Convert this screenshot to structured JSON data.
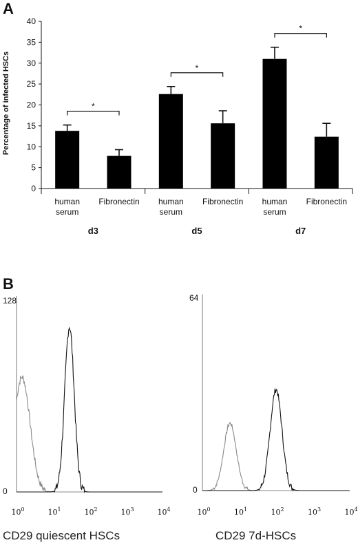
{
  "panels": {
    "a": "A",
    "b": "B"
  },
  "chart_data": [
    {
      "type": "bar",
      "ylabel": "Percentage of infected HSCs",
      "ylim": [
        0,
        40
      ],
      "yticks": [
        0,
        5,
        10,
        15,
        20,
        25,
        30,
        35,
        40
      ],
      "categories": [
        {
          "line1": "human",
          "line2": "serum"
        },
        {
          "line1": "Fibronectin",
          "line2": ""
        },
        {
          "line1": "human",
          "line2": "serum"
        },
        {
          "line1": "Fibronectin",
          "line2": ""
        },
        {
          "line1": "human",
          "line2": "serum"
        },
        {
          "line1": "Fibronectin",
          "line2": ""
        }
      ],
      "groups": [
        "d3",
        "d5",
        "d7"
      ],
      "values": [
        13.8,
        7.8,
        22.6,
        15.6,
        31.0,
        12.4
      ],
      "errors": [
        1.4,
        1.5,
        1.8,
        3.0,
        2.8,
        3.2
      ],
      "significance": [
        {
          "pair": [
            0,
            1
          ],
          "label": "*"
        },
        {
          "pair": [
            2,
            3
          ],
          "label": "*"
        },
        {
          "pair": [
            4,
            5
          ],
          "label": "*"
        }
      ],
      "bar_color": "#000000"
    },
    {
      "type": "histogram",
      "title": "CD29 quiescent HSCs",
      "ymax_label": "128",
      "ymin_label": "0",
      "ymax": 128,
      "x_log_ticks": [
        {
          "base": "10",
          "exp": "0"
        },
        {
          "base": "10",
          "exp": "1"
        },
        {
          "base": "10",
          "exp": "2"
        },
        {
          "base": "10",
          "exp": "3"
        },
        {
          "base": "10",
          "exp": "4"
        }
      ],
      "curves": [
        {
          "color": "#8a8a8a",
          "peak_log": 0.15,
          "peak_count": 75,
          "width": 0.22
        },
        {
          "color": "#111111",
          "peak_log": 1.45,
          "peak_count": 108,
          "width": 0.13
        }
      ]
    },
    {
      "type": "histogram",
      "title": "CD29 7d-HSCs",
      "ymax_label": "64",
      "ymin_label": "0",
      "ymax": 64,
      "x_log_ticks": [
        {
          "base": "10",
          "exp": "0"
        },
        {
          "base": "10",
          "exp": "1"
        },
        {
          "base": "10",
          "exp": "2"
        },
        {
          "base": "10",
          "exp": "3"
        },
        {
          "base": "10",
          "exp": "4"
        }
      ],
      "curves": [
        {
          "color": "#8a8a8a",
          "peak_log": 0.75,
          "peak_count": 22,
          "width": 0.17
        },
        {
          "color": "#111111",
          "peak_log": 2.0,
          "peak_count": 33,
          "width": 0.16
        }
      ]
    }
  ]
}
